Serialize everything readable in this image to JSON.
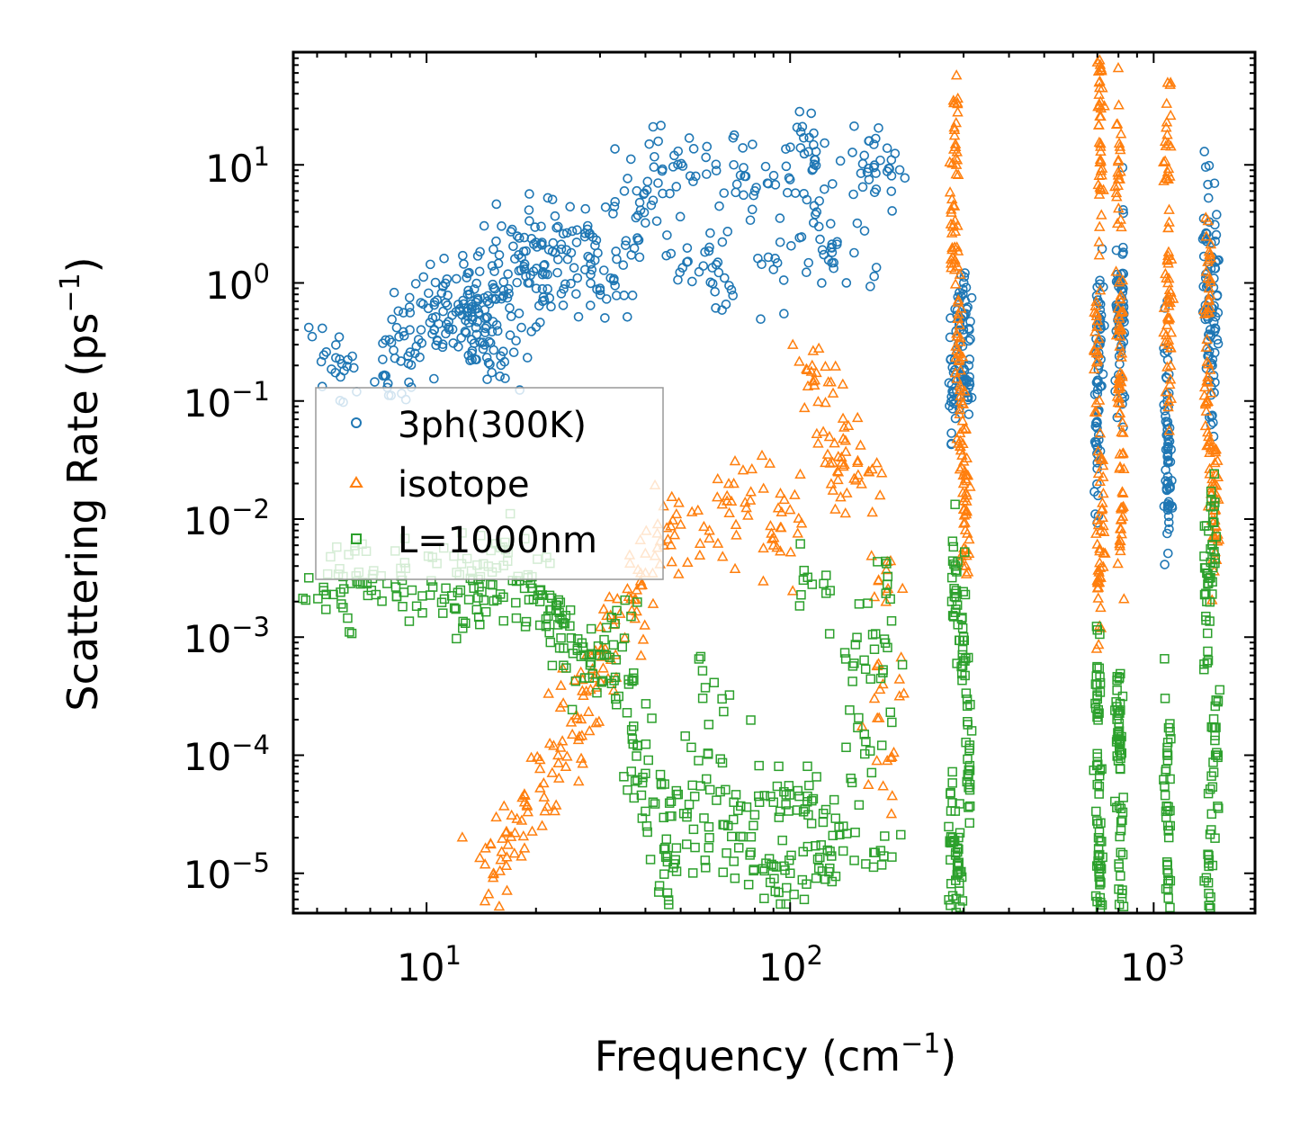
{
  "chart_data": {
    "type": "scatter",
    "xscale": "log",
    "yscale": "log",
    "xlim": [
      4.3,
      1900
    ],
    "ylim": [
      4.6e-06,
      90
    ],
    "xlabel": "Frequency (cm",
    "xlabel_sup": "−1",
    "xlabel_end": ")",
    "ylabel": "Scattering Rate (ps",
    "ylabel_sup": "−1",
    "ylabel_end": ")",
    "x_ticks": [
      {
        "value": 10,
        "base": "10",
        "exp": "1"
      },
      {
        "value": 100,
        "base": "10",
        "exp": "2"
      },
      {
        "value": 1000,
        "base": "10",
        "exp": "3"
      }
    ],
    "y_ticks": [
      {
        "value": 1e-05,
        "base": "10",
        "exp": "−5"
      },
      {
        "value": 0.0001,
        "base": "10",
        "exp": "−4"
      },
      {
        "value": 0.001,
        "base": "10",
        "exp": "−3"
      },
      {
        "value": 0.01,
        "base": "10",
        "exp": "−2"
      },
      {
        "value": 0.1,
        "base": "10",
        "exp": "−1"
      },
      {
        "value": 1,
        "base": "10",
        "exp": "0"
      },
      {
        "value": 10,
        "base": "10",
        "exp": "1"
      }
    ],
    "legend": {
      "position": "center-left"
    },
    "series": [
      {
        "name": "3ph(300K)",
        "marker": "circle",
        "color": "#1f77b4",
        "approximate_points": [
          [
            5.3,
            0.26
          ],
          [
            5.8,
            0.16
          ],
          [
            7.8,
            0.13
          ],
          [
            8.4,
            0.35
          ],
          [
            8.9,
            0.24
          ],
          [
            9.0,
            0.4
          ],
          [
            10.5,
            0.65
          ],
          [
            10.8,
            0.45
          ],
          [
            11.0,
            0.82
          ],
          [
            11.5,
            0.47
          ],
          [
            12.6,
            0.71
          ],
          [
            13.0,
            0.61
          ],
          [
            13.3,
            0.6
          ],
          [
            14.0,
            1.25
          ],
          [
            14.5,
            0.38
          ],
          [
            15.0,
            0.31
          ],
          [
            15.3,
            0.27
          ],
          [
            15.6,
            0.44
          ],
          [
            16.0,
            0.24
          ],
          [
            16.8,
            0.89
          ],
          [
            17.5,
            1.6
          ],
          [
            18.0,
            2.4
          ],
          [
            19.0,
            1.0
          ],
          [
            20.0,
            2.2
          ],
          [
            21.0,
            1.4
          ],
          [
            22.0,
            0.63
          ],
          [
            23.0,
            3.0
          ],
          [
            25.0,
            1.8
          ],
          [
            26.0,
            1.1
          ],
          [
            28.0,
            2.6
          ],
          [
            30.0,
            0.9
          ],
          [
            33.0,
            0.95
          ],
          [
            35.0,
            6.0
          ],
          [
            38.0,
            2.4
          ],
          [
            42.0,
            5.0
          ],
          [
            48.0,
            12.0
          ],
          [
            52.0,
            1.5
          ],
          [
            55.0,
            8.0
          ],
          [
            60.0,
            2.0
          ],
          [
            66.0,
            1.1
          ],
          [
            70.0,
            10.0
          ],
          [
            80.0,
            6.0
          ],
          [
            90.0,
            1.3
          ],
          [
            100.0,
            7.5
          ],
          [
            107.0,
            19.0
          ],
          [
            115.0,
            9.0
          ],
          [
            120.0,
            3.0
          ],
          [
            130.0,
            2.0
          ],
          [
            150.0,
            1.8
          ],
          [
            160.0,
            12.0
          ],
          [
            170.0,
            9.5
          ],
          [
            185.0,
            8.8
          ],
          [
            280.0,
            0.12
          ],
          [
            290.0,
            0.3
          ],
          [
            300.0,
            0.37
          ],
          [
            310.0,
            0.2
          ],
          [
            700.0,
            0.03
          ],
          [
            705.0,
            0.2
          ],
          [
            710.0,
            0.5
          ],
          [
            800.0,
            0.6
          ],
          [
            810.0,
            0.35
          ],
          [
            820.0,
            0.9
          ],
          [
            1090.0,
            0.1
          ],
          [
            1095.0,
            0.03
          ],
          [
            1100.0,
            0.014
          ],
          [
            1400.0,
            2.6
          ],
          [
            1420.0,
            0.6
          ],
          [
            1450.0,
            0.2
          ],
          [
            1480.0,
            1.5
          ]
        ]
      },
      {
        "name": "isotope",
        "marker": "triangle",
        "color": "#ff7f0e",
        "approximate_points": [
          [
            15.3,
            1e-05
          ],
          [
            16.0,
            1.3e-05
          ],
          [
            17.5,
            2.2e-05
          ],
          [
            19.0,
            3.3e-05
          ],
          [
            21.0,
            5.8e-05
          ],
          [
            23.0,
            0.0001
          ],
          [
            25.0,
            0.00019
          ],
          [
            27.0,
            0.00032
          ],
          [
            29.0,
            0.00045
          ],
          [
            31.0,
            0.0008
          ],
          [
            33.0,
            0.0014
          ],
          [
            36.0,
            0.0022
          ],
          [
            40.0,
            0.0035
          ],
          [
            45.0,
            0.006
          ],
          [
            50.0,
            0.009
          ],
          [
            60.0,
            0.008
          ],
          [
            70.0,
            0.02
          ],
          [
            78.0,
            0.017
          ],
          [
            90.0,
            0.006
          ],
          [
            100.0,
            0.012
          ],
          [
            115.0,
            0.2
          ],
          [
            117.0,
            0.15
          ],
          [
            125.0,
            0.03
          ],
          [
            140.0,
            0.048
          ],
          [
            150.0,
            0.022
          ],
          [
            165.0,
            0.025
          ],
          [
            175.0,
            0.003
          ],
          [
            180.0,
            0.0004
          ],
          [
            185.0,
            9e-05
          ],
          [
            280.0,
            3.0
          ],
          [
            285.0,
            15.0
          ],
          [
            290.0,
            0.5
          ],
          [
            295.0,
            0.1
          ],
          [
            300.0,
            0.02
          ],
          [
            305.0,
            0.011
          ],
          [
            700.0,
            0.3
          ],
          [
            705.0,
            0.0037
          ],
          [
            710.0,
            45.0
          ],
          [
            715.0,
            13.0
          ],
          [
            720.0,
            0.012
          ],
          [
            800.0,
            11.0
          ],
          [
            805.0,
            0.5
          ],
          [
            810.0,
            0.13
          ],
          [
            815.0,
            0.01
          ],
          [
            1090.0,
            18.0
          ],
          [
            1095.0,
            1.0
          ],
          [
            1100.0,
            0.3
          ],
          [
            1400.0,
            0.1
          ],
          [
            1420.0,
            0.9
          ],
          [
            1450.0,
            0.02
          ],
          [
            1480.0,
            0.012
          ]
        ]
      },
      {
        "name": "L=1000nm",
        "marker": "square",
        "color": "#2ca02c",
        "approximate_points": [
          [
            5.3,
            0.0023
          ],
          [
            5.8,
            0.0024
          ],
          [
            6.4,
            0.0033
          ],
          [
            7.5,
            0.0033
          ],
          [
            8.5,
            0.0033
          ],
          [
            10.3,
            0.003
          ],
          [
            11.3,
            0.0026
          ],
          [
            12.4,
            0.0025
          ],
          [
            13.5,
            0.0026
          ],
          [
            15.0,
            0.0028
          ],
          [
            16.5,
            0.0055
          ],
          [
            18.0,
            0.003
          ],
          [
            19.5,
            0.0026
          ],
          [
            20.5,
            0.002
          ],
          [
            22.0,
            0.0017
          ],
          [
            24.0,
            0.0013
          ],
          [
            26.0,
            0.0008
          ],
          [
            28.0,
            0.00045
          ],
          [
            30.0,
            0.0007
          ],
          [
            33.0,
            0.0013
          ],
          [
            36.0,
            0.0004
          ],
          [
            38.0,
            0.00012
          ],
          [
            40.0,
            7e-05
          ],
          [
            42.0,
            4e-05
          ],
          [
            45.0,
            1.6e-05
          ],
          [
            48.0,
            1.2e-05
          ],
          [
            52.0,
            3e-05
          ],
          [
            56.0,
            9e-05
          ],
          [
            60.0,
            2e-05
          ],
          [
            65.0,
            0.0003
          ],
          [
            70.0,
            4e-05
          ],
          [
            78.0,
            1.5e-05
          ],
          [
            85.0,
            1.05e-05
          ],
          [
            90.0,
            4e-05
          ],
          [
            100.0,
            1e-05
          ],
          [
            105.0,
            5e-05
          ],
          [
            110.0,
            3.5e-05
          ],
          [
            115.0,
            0.0028
          ],
          [
            120.0,
            1.1e-05
          ],
          [
            130.0,
            1.4e-05
          ],
          [
            140.0,
            2.5e-05
          ],
          [
            150.0,
            0.0006
          ],
          [
            160.0,
            0.00015
          ],
          [
            170.0,
            1.5e-05
          ],
          [
            180.0,
            0.0005
          ],
          [
            185.0,
            0.0028
          ],
          [
            280.0,
            2e-05
          ],
          [
            285.0,
            0.004
          ],
          [
            290.0,
            1e-05
          ],
          [
            300.0,
            0.001
          ],
          [
            310.0,
            7.5e-05
          ],
          [
            700.0,
            0.0003
          ],
          [
            705.0,
            2e-05
          ],
          [
            710.0,
            1e-05
          ],
          [
            800.0,
            0.00015
          ],
          [
            805.0,
            0.00011
          ],
          [
            810.0,
            9.5e-06
          ],
          [
            1090.0,
            0.0001
          ],
          [
            1095.0,
            1e-05
          ],
          [
            1400.0,
            0.002
          ],
          [
            1420.0,
            1.3e-05
          ],
          [
            1450.0,
            0.006
          ],
          [
            1480.0,
            0.0001
          ]
        ]
      }
    ]
  }
}
